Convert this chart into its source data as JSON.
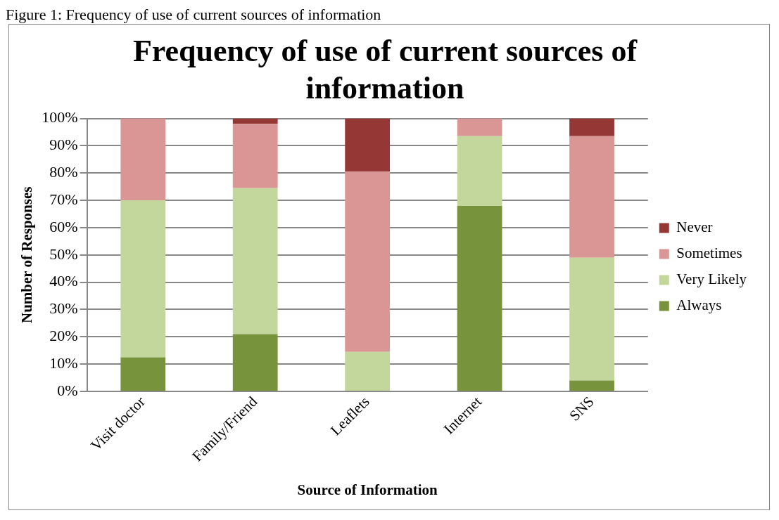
{
  "chart_data": {
    "type": "bar",
    "title": [
      "Frequency of use of current sources of",
      "information"
    ],
    "annotations": [
      "Figure 1: Frequency of use of current sources of information"
    ],
    "xlabel": "Source of Information",
    "ylabel": "Number of Responses",
    "categories": [
      "Visit doctor",
      "Family/Friend",
      "Leaflets",
      "Internet",
      "SNS"
    ],
    "stacked": true,
    "series": [
      {
        "name": "Always",
        "color": "#77933c",
        "values": [
          12.5,
          21,
          0,
          68,
          4
        ]
      },
      {
        "name": "Very Likely",
        "color": "#c3d69b",
        "values": [
          57.5,
          53.5,
          14.5,
          25.5,
          45
        ]
      },
      {
        "name": "Sometimes",
        "color": "#d99694",
        "values": [
          30,
          23.5,
          66,
          6.5,
          44.5
        ]
      },
      {
        "name": "Never",
        "color": "#953735",
        "values": [
          0,
          2,
          19.5,
          0,
          6.5
        ]
      }
    ],
    "ylim": [
      0,
      100
    ],
    "yticks": [
      {
        "value": 0,
        "label": "0%"
      },
      {
        "value": 10,
        "label": "10%"
      },
      {
        "value": 20,
        "label": "20%"
      },
      {
        "value": 30,
        "label": "30%"
      },
      {
        "value": 40,
        "label": "40%"
      },
      {
        "value": 50,
        "label": "50%"
      },
      {
        "value": 60,
        "label": "60%"
      },
      {
        "value": 70,
        "label": "70%"
      },
      {
        "value": 80,
        "label": "80%"
      },
      {
        "value": 90,
        "label": "90%"
      },
      {
        "value": 100,
        "label": "100%"
      }
    ],
    "grid": "y",
    "legend": "right"
  }
}
